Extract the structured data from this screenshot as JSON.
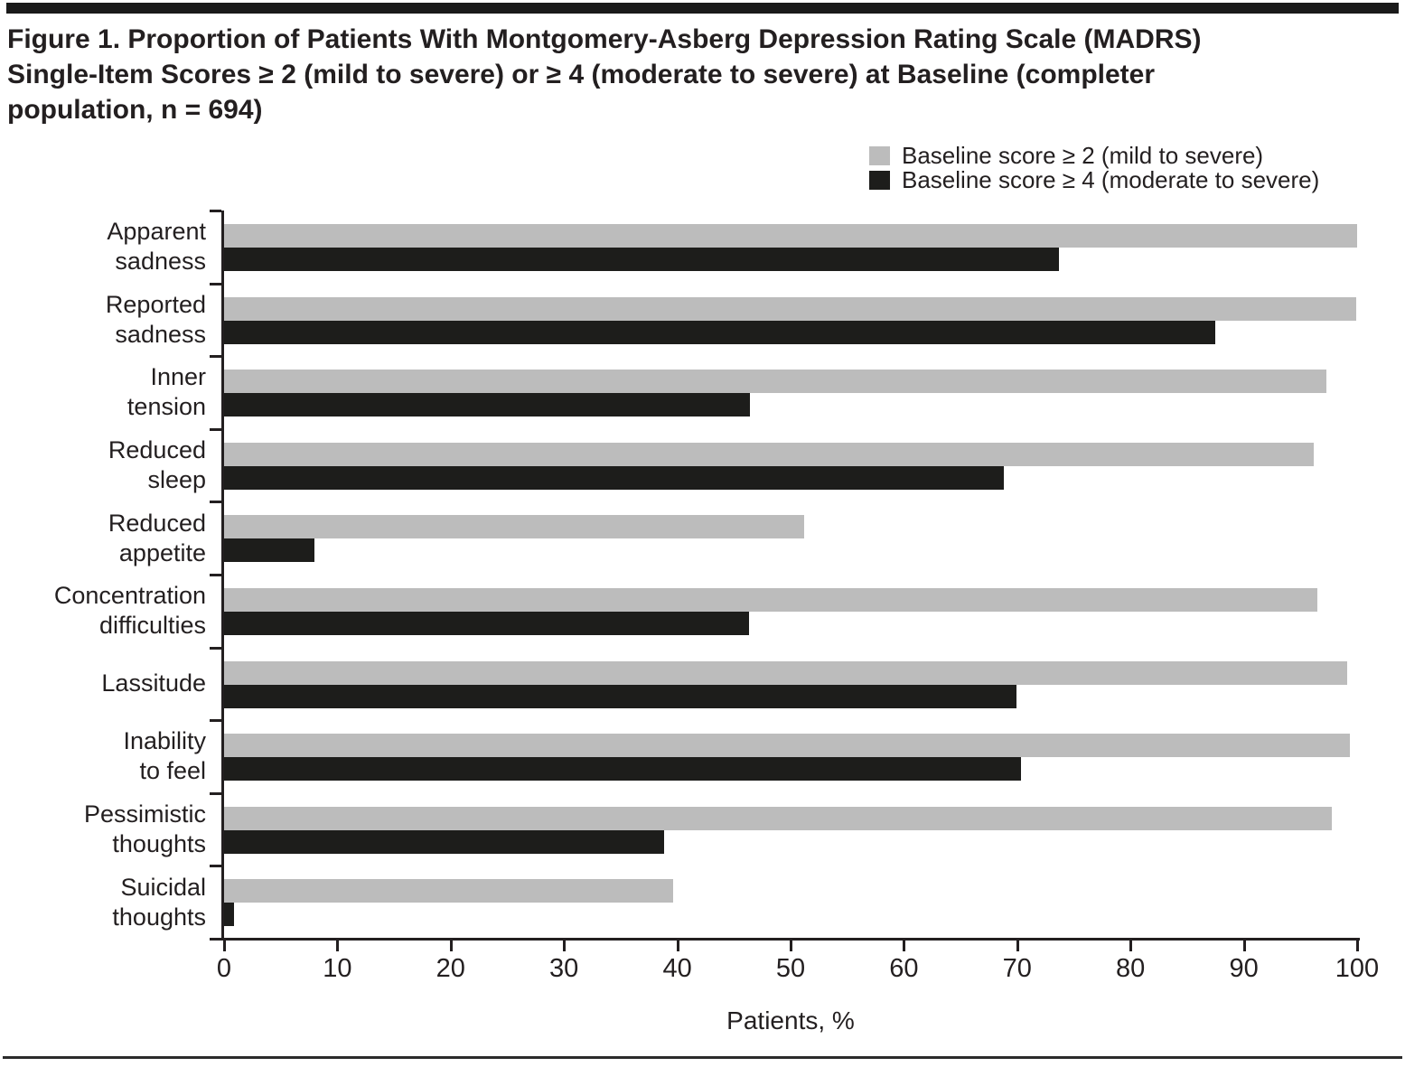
{
  "figure": {
    "title_lines": [
      "Figure 1. Proportion of Patients With Montgomery-Asberg Depression Rating Scale (MADRS)",
      "Single-Item Scores ≥ 2 (mild to severe) or ≥ 4 (moderate to severe) at Baseline (completer",
      "population, n = 694)"
    ]
  },
  "chart_data": {
    "type": "bar",
    "orientation": "horizontal",
    "title": "Figure 1. Proportion of Patients With Montgomery-Asberg Depression Rating Scale (MADRS) Single-Item Scores ≥ 2 (mild to severe) or ≥ 4 (moderate to severe) at Baseline (completer population, n = 694)",
    "categories": [
      "Apparent sadness",
      "Reported sadness",
      "Inner tension",
      "Reduced sleep",
      "Reduced appetite",
      "Concentration difficulties",
      "Lassitude",
      "Inability to feel",
      "Pessimistic thoughts",
      "Suicidal thoughts"
    ],
    "category_label_lines": [
      [
        "Apparent",
        "sadness"
      ],
      [
        "Reported",
        "sadness"
      ],
      [
        "Inner",
        "tension"
      ],
      [
        "Reduced",
        "sleep"
      ],
      [
        "Reduced",
        "appetite"
      ],
      [
        "Concentration",
        "difficulties"
      ],
      [
        "Lassitude"
      ],
      [
        "Inability",
        "to feel"
      ],
      [
        "Pessimistic",
        "thoughts"
      ],
      [
        "Suicidal",
        "thoughts"
      ]
    ],
    "series": [
      {
        "name": "Baseline score ≥ 2 (mild to severe)",
        "color": "#bcbcbc",
        "values": [
          100,
          99.9,
          97.3,
          96.2,
          51.2,
          96.5,
          99.1,
          99.4,
          97.8,
          39.6
        ]
      },
      {
        "name": "Baseline score ≥ 4 (moderate to severe)",
        "color": "#1d1d1b",
        "values": [
          73.7,
          87.5,
          46.4,
          68.8,
          8.0,
          46.3,
          69.9,
          70.3,
          38.8,
          0.9
        ]
      }
    ],
    "xlabel": "Patients, %",
    "xlim": [
      0,
      100
    ],
    "xticks": [
      0,
      10,
      20,
      30,
      40,
      50,
      60,
      70,
      80,
      90,
      100
    ],
    "grid": false,
    "legend_position": "top-right"
  },
  "colors": {
    "text": "#231f20",
    "axis": "#231f20",
    "top_rule": "#1a1a1a",
    "bottom_rule": "#2b2b2b",
    "series_gray": "#bcbcbc",
    "series_black": "#1d1d1b"
  }
}
